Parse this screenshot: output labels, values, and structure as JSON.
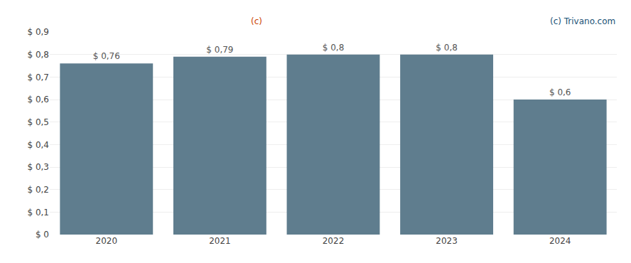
{
  "chart_data": {
    "type": "bar",
    "categories": [
      "2020",
      "2021",
      "2022",
      "2023",
      "2024"
    ],
    "values": [
      0.76,
      0.79,
      0.8,
      0.8,
      0.6
    ],
    "value_labels": [
      "$ 0,76",
      "$ 0,79",
      "$ 0,8",
      "$ 0,8",
      "$ 0,6"
    ],
    "data_labels": true,
    "color": "#5f7d8e",
    "ylim": [
      0,
      0.9
    ],
    "yticks": [
      {
        "value": 0,
        "label": "$ 0"
      },
      {
        "value": 0.1,
        "label": "$ 0,1"
      },
      {
        "value": 0.2,
        "label": "$ 0,2"
      },
      {
        "value": 0.3,
        "label": "$ 0,3"
      },
      {
        "value": 0.4,
        "label": "$ 0,4"
      },
      {
        "value": 0.5,
        "label": "$ 0,5"
      },
      {
        "value": 0.6,
        "label": "$ 0,6"
      },
      {
        "value": 0.7,
        "label": "$ 0,7"
      },
      {
        "value": 0.8,
        "label": "$ 0,8"
      },
      {
        "value": 0.9,
        "label": "$ 0,9"
      }
    ],
    "grid": true,
    "annotations": [
      {
        "text": "(c) Trivano.com",
        "color": "#1a5276"
      },
      {
        "text": "(c)",
        "color": "#cc4400"
      }
    ]
  }
}
